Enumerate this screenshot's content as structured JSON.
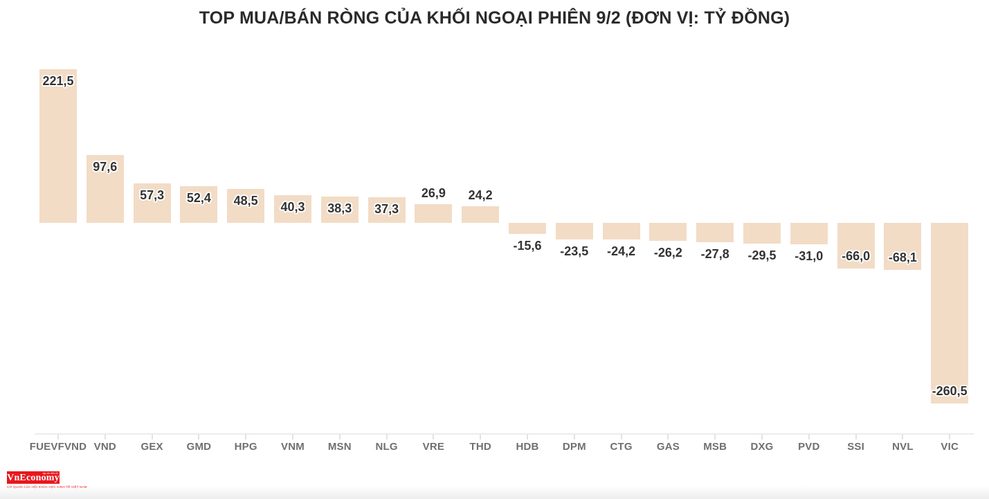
{
  "title": "TOP MUA/BÁN RÒNG CỦA KHỐI NGOẠI PHIÊN 9/2 (ĐƠN VỊ: TỶ ĐỒNG)",
  "chart_data": {
    "type": "bar",
    "title": "TOP MUA/BÁN RÒNG CỦA KHỐI NGOẠI PHIÊN 9/2 (ĐƠN VỊ: TỶ ĐỒNG)",
    "unit": "tỷ đồng",
    "categories": [
      "FUEVFVND",
      "VND",
      "GEX",
      "GMD",
      "HPG",
      "VNM",
      "MSN",
      "NLG",
      "VRE",
      "THD",
      "HDB",
      "DPM",
      "CTG",
      "GAS",
      "MSB",
      "DXG",
      "PVD",
      "SSI",
      "NVL",
      "VIC"
    ],
    "values": [
      221.5,
      97.6,
      57.3,
      52.4,
      48.5,
      40.3,
      38.3,
      37.3,
      26.9,
      24.2,
      -15.6,
      -23.5,
      -24.2,
      -26.2,
      -27.8,
      -29.5,
      -31.0,
      -66.0,
      -68.1,
      -260.5
    ],
    "value_labels": [
      "221,5",
      "97,6",
      "57,3",
      "52,4",
      "48,5",
      "40,3",
      "38,3",
      "37,3",
      "26,9",
      "24,2",
      "-15,6",
      "-23,5",
      "-24,2",
      "-26,2",
      "-27,8",
      "-29,5",
      "-31,0",
      "-66,0",
      "-68,1",
      "-260,5"
    ],
    "bar_color": "#f2dcc6",
    "label_color": "#333333",
    "axis_label_color": "#6f6f6f",
    "baseline": 0,
    "ylim": [
      -280,
      240
    ],
    "grid": false,
    "legend": false
  },
  "logo": {
    "name": "VnEconomy",
    "tagline_top": "tạp chí điện tử",
    "tagline_bottom": "CƠ QUAN CỦA HỘI KHOA HỌC KINH TẾ VIỆT NAM",
    "brand_color": "#e8161d"
  }
}
